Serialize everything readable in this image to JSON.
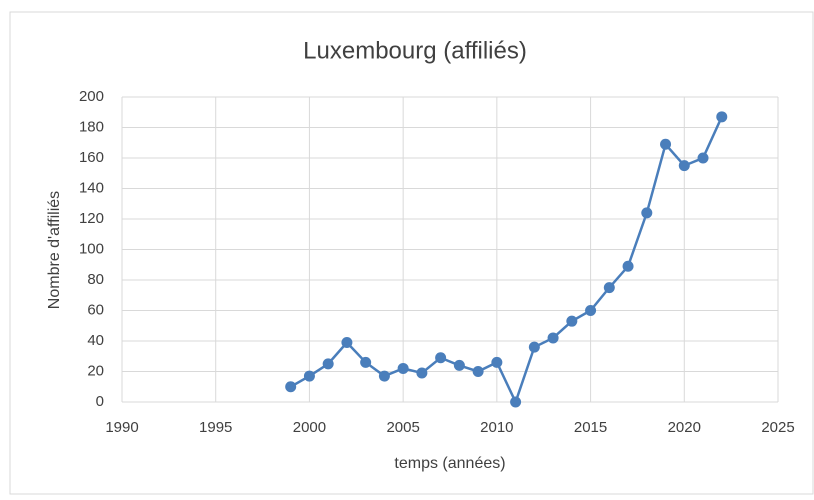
{
  "chart_data": {
    "type": "line",
    "title": "Luxembourg (affiliés)",
    "xlabel": "temps (années)",
    "ylabel": "Nombre d'affiliés",
    "x": [
      1999,
      2000,
      2001,
      2002,
      2003,
      2004,
      2005,
      2006,
      2007,
      2008,
      2009,
      2010,
      2011,
      2012,
      2013,
      2014,
      2015,
      2016,
      2017,
      2018,
      2019,
      2020,
      2021,
      2022
    ],
    "series": [
      {
        "name": "Luxembourg",
        "color": "#4a7ebb",
        "values": [
          10,
          17,
          25,
          39,
          26,
          17,
          22,
          19,
          29,
          24,
          20,
          26,
          0,
          36,
          42,
          53,
          60,
          75,
          89,
          124,
          169,
          155,
          160,
          187
        ]
      }
    ],
    "xlim": [
      1990,
      2025
    ],
    "xticks": [
      1990,
      1995,
      2000,
      2005,
      2010,
      2015,
      2020,
      2025
    ],
    "ylim": [
      0,
      200
    ],
    "yticks": [
      0,
      20,
      40,
      60,
      80,
      100,
      120,
      140,
      160,
      180,
      200
    ],
    "grid": true
  }
}
